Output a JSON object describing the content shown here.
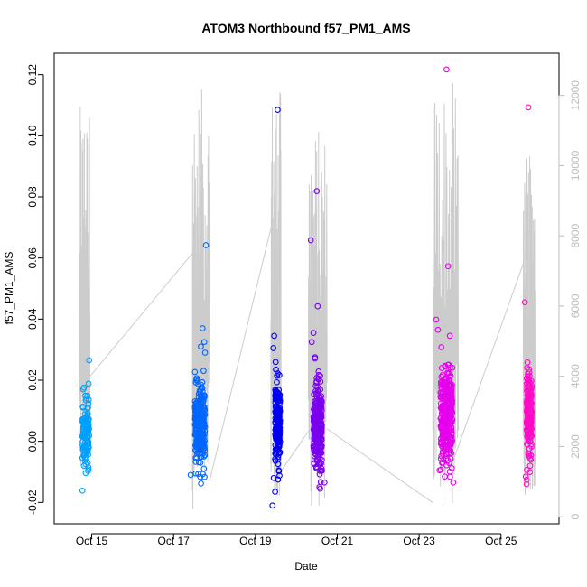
{
  "chart_data": {
    "type": "scatter",
    "title": "ATOM3 Northbound f57_PM1_AMS",
    "xlabel": "Date",
    "ylabel": "f57_PM1_AMS",
    "x_axis": {
      "type": "date",
      "min": "2019-10-14T02:00",
      "max": "2019-10-26T10:00",
      "ticks": [
        "Oct 15",
        "Oct 17",
        "Oct 19",
        "Oct 21",
        "Oct 23",
        "Oct 25"
      ],
      "tick_dates": [
        "2019-10-15",
        "2019-10-17",
        "2019-10-19",
        "2019-10-21",
        "2019-10-23",
        "2019-10-25"
      ]
    },
    "y_axis": {
      "min": -0.027,
      "max": 0.127,
      "ticks": [
        "-0.02",
        "0.00",
        "0.02",
        "0.04",
        "0.06",
        "0.08",
        "0.10",
        "0.12"
      ],
      "tick_values": [
        -0.02,
        0.0,
        0.02,
        0.04,
        0.06,
        0.08,
        0.1,
        0.12
      ]
    },
    "y2_axis": {
      "min": -200,
      "max": 13200,
      "ticks": [
        "0",
        "2000",
        "4000",
        "6000",
        "8000",
        "10000",
        "12000"
      ],
      "tick_values": [
        0,
        2000,
        4000,
        6000,
        8000,
        10000,
        12000
      ],
      "color": "#bdbdbd"
    },
    "grid": false,
    "legend": "none",
    "series": [
      {
        "flight_date": "2019-10-14",
        "color": "#00a0ff",
        "center": "2019-10-14T20:30",
        "spread_hours": 4,
        "y_center": 0.003,
        "y_spread": 0.0055,
        "n_points": 120,
        "outliers": [
          {
            "x": "2019-10-14T22:30",
            "y": 0.0265
          },
          {
            "x": "2019-10-14T19:00",
            "y": 0.017
          },
          {
            "x": "2019-10-14T21:00",
            "y": 0.014
          },
          {
            "x": "2019-10-14T19:30",
            "y": -0.008
          },
          {
            "x": "2019-10-14T22:00",
            "y": -0.0085
          }
        ]
      },
      {
        "flight_date": "2019-10-17",
        "color": "#0066ff",
        "center": "2019-10-17T15:30",
        "spread_hours": 6,
        "y_center": 0.005,
        "y_spread": 0.0065,
        "n_points": 280,
        "outliers": [
          {
            "x": "2019-10-17T19:00",
            "y": 0.0642
          },
          {
            "x": "2019-10-17T17:00",
            "y": 0.037
          },
          {
            "x": "2019-10-17T18:00",
            "y": 0.0325
          },
          {
            "x": "2019-10-17T16:00",
            "y": 0.031
          },
          {
            "x": "2019-10-17T18:30",
            "y": 0.029
          },
          {
            "x": "2019-10-17T10:00",
            "y": -0.011
          },
          {
            "x": "2019-10-17T13:00",
            "y": -0.0105
          }
        ]
      },
      {
        "flight_date": "2019-10-19",
        "color": "#0000ee",
        "center": "2019-10-19T13:00",
        "spread_hours": 3,
        "y_center": 0.006,
        "y_spread": 0.0065,
        "n_points": 190,
        "outliers": [
          {
            "x": "2019-10-19T13:00",
            "y": 0.1085
          },
          {
            "x": "2019-10-19T11:00",
            "y": 0.0345
          },
          {
            "x": "2019-10-19T10:30",
            "y": 0.0305
          },
          {
            "x": "2019-10-19T12:00",
            "y": 0.0235
          },
          {
            "x": "2019-10-19T10:00",
            "y": -0.021
          },
          {
            "x": "2019-10-19T11:30",
            "y": -0.0165
          },
          {
            "x": "2019-10-19T10:45",
            "y": -0.012
          }
        ]
      },
      {
        "flight_date": "2019-10-20",
        "color": "#7a00ee",
        "center": "2019-10-20T12:30",
        "spread_hours": 5,
        "y_center": 0.005,
        "y_spread": 0.007,
        "n_points": 300,
        "outliers": [
          {
            "x": "2019-10-20T12:00",
            "y": 0.0819
          },
          {
            "x": "2019-10-20T08:30",
            "y": 0.0658
          },
          {
            "x": "2019-10-20T12:30",
            "y": 0.0442
          },
          {
            "x": "2019-10-20T10:00",
            "y": 0.0355
          },
          {
            "x": "2019-10-20T09:00",
            "y": 0.0325
          },
          {
            "x": "2019-10-20T11:00",
            "y": 0.0275
          },
          {
            "x": "2019-10-20T14:00",
            "y": -0.0155
          },
          {
            "x": "2019-10-20T16:30",
            "y": -0.0135
          }
        ]
      },
      {
        "flight_date": "2019-10-23",
        "color": "#e600ee",
        "center": "2019-10-23T16:00",
        "spread_hours": 7,
        "y_center": 0.008,
        "y_spread": 0.0075,
        "n_points": 330,
        "outliers": [
          {
            "x": "2019-10-23T16:00",
            "y": 0.1217
          },
          {
            "x": "2019-10-23T17:00",
            "y": 0.0573
          },
          {
            "x": "2019-10-23T10:00",
            "y": 0.0398
          },
          {
            "x": "2019-10-23T11:00",
            "y": 0.0365
          },
          {
            "x": "2019-10-23T18:00",
            "y": 0.0345
          },
          {
            "x": "2019-10-23T13:00",
            "y": 0.0308
          },
          {
            "x": "2019-10-23T12:00",
            "y": -0.0095
          },
          {
            "x": "2019-10-23T15:00",
            "y": -0.0115
          },
          {
            "x": "2019-10-23T20:00",
            "y": -0.0135
          }
        ]
      },
      {
        "flight_date": "2019-10-25",
        "color": "#ff0cc8",
        "center": "2019-10-25T16:30",
        "spread_hours": 3,
        "y_center": 0.009,
        "y_spread": 0.0065,
        "n_points": 200,
        "outliers": [
          {
            "x": "2019-10-25T16:00",
            "y": 0.1093
          },
          {
            "x": "2019-10-25T14:00",
            "y": 0.0455
          },
          {
            "x": "2019-10-25T15:30",
            "y": 0.0258
          },
          {
            "x": "2019-10-25T14:30",
            "y": -0.0115
          },
          {
            "x": "2019-10-25T15:00",
            "y": -0.014
          },
          {
            "x": "2019-10-25T17:30",
            "y": -0.006
          }
        ]
      }
    ],
    "aux_series": {
      "color": "#cccccc",
      "axis": "y2",
      "envelopes": [
        {
          "start": "2019-10-14T17:00",
          "end": "2019-10-14T23:00",
          "low": 800,
          "high": 11700
        },
        {
          "start": "2019-10-17T11:00",
          "end": "2019-10-17T21:00",
          "low": 200,
          "high": 12200
        },
        {
          "start": "2019-10-19T09:00",
          "end": "2019-10-19T15:00",
          "low": 200,
          "high": 12200
        },
        {
          "start": "2019-10-20T07:00",
          "end": "2019-10-20T18:00",
          "low": 200,
          "high": 11100
        },
        {
          "start": "2019-10-23T08:00",
          "end": "2019-10-23T23:00",
          "low": 200,
          "high": 12400
        },
        {
          "start": "2019-10-25T13:00",
          "end": "2019-10-25T20:00",
          "low": 600,
          "high": 10300
        }
      ],
      "connectors": [
        {
          "from": "2019-10-14T23:00",
          "from_v": 4000,
          "to": "2019-10-17T11:00",
          "to_v": 7500
        },
        {
          "from": "2019-10-17T21:00",
          "from_v": 1000,
          "to": "2019-10-19T09:00",
          "to_v": 8200
        },
        {
          "from": "2019-10-19T15:00",
          "from_v": 1300,
          "to": "2019-10-20T08:00",
          "to_v": 2500
        },
        {
          "from": "2019-10-20T18:00",
          "from_v": 2500,
          "to": "2019-10-23T08:00",
          "to_v": 400
        },
        {
          "from": "2019-10-23T20:00",
          "from_v": 1600,
          "to": "2019-10-25T13:00",
          "to_v": 7200
        }
      ]
    }
  }
}
